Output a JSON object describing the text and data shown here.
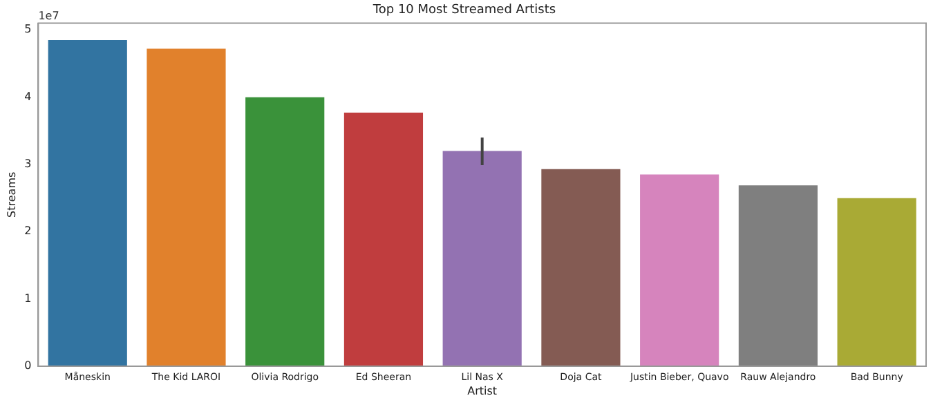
{
  "chart_data": {
    "type": "bar",
    "title": "Top 10 Most Streamed Artists",
    "xlabel": "Artist",
    "ylabel": "Streams",
    "annotations": [
      "1e7"
    ],
    "categories": [
      "Måneskin",
      "The Kid LAROI",
      "Olivia Rodrigo",
      "Ed Sheeran",
      "Lil Nas X",
      "Doja Cat",
      "Justin Bieber, Quavo",
      "Rauw Alejandro",
      "Bad Bunny"
    ],
    "values": [
      4.85,
      4.72,
      4.0,
      3.77,
      3.2,
      2.93,
      2.85,
      2.69,
      2.5
    ],
    "colors": [
      "#3274a1",
      "#e1812c",
      "#3a923a",
      "#c03d3e",
      "#9372b2",
      "#845b53",
      "#d684bd",
      "#7f7f7f",
      "#a9aa35"
    ],
    "errors": [
      null,
      null,
      null,
      null,
      [
        2.99,
        3.4
      ],
      null,
      null,
      null,
      null
    ],
    "ylim": [
      0,
      5.1
    ],
    "yticks": [
      0,
      1,
      2,
      3,
      4,
      5
    ],
    "grid": false,
    "legend": false
  }
}
